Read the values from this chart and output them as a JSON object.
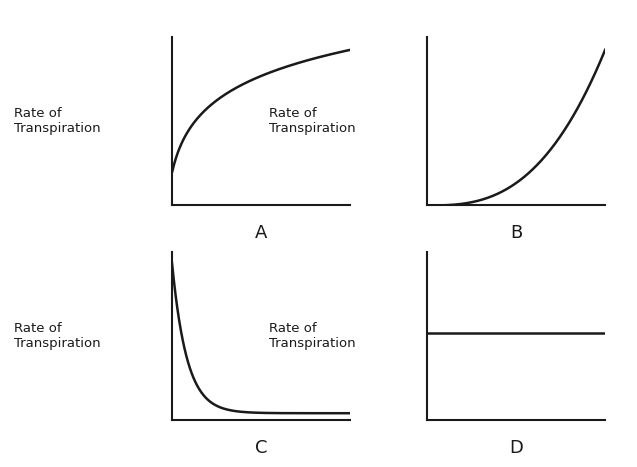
{
  "background_color": "#ffffff",
  "subplot_labels": [
    "A",
    "B",
    "C",
    "D"
  ],
  "ylabel": "Rate of\nTranspiration",
  "line_color": "#1a1a1a",
  "line_width": 1.8,
  "axis_color": "#1a1a1a",
  "axis_linewidth": 1.5,
  "label_fontsize": 9.5,
  "sublabel_fontsize": 13
}
